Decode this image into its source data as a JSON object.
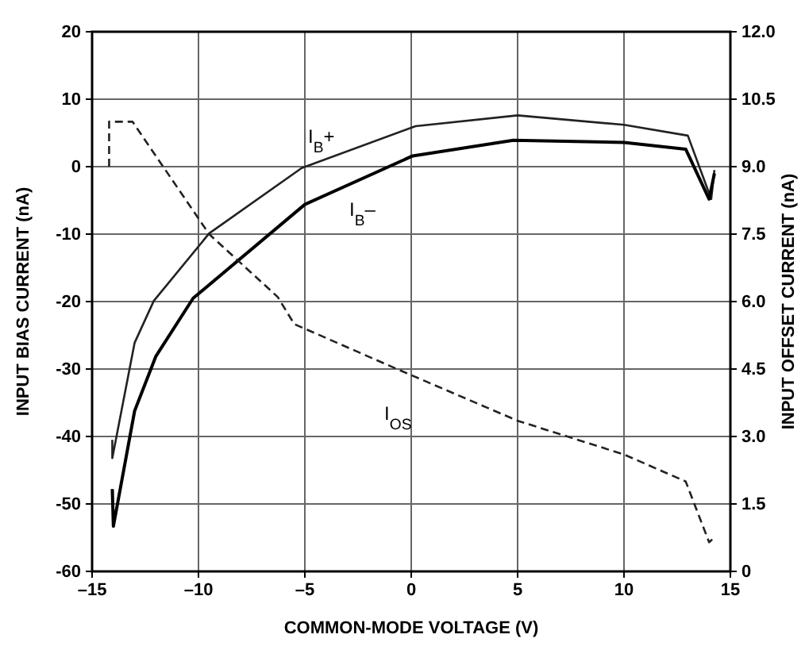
{
  "chart_data": {
    "type": "line",
    "xlabel": "COMMON-MODE VOLTAGE (V)",
    "ylabel": "INPUT BIAS CURRENT (nA)",
    "y2label": "INPUT OFFSET CURRENT (nA)",
    "xlim": [
      -15,
      15
    ],
    "xticks": [
      {
        "value": -15,
        "label": "–15"
      },
      {
        "value": -10,
        "label": "–10"
      },
      {
        "value": -5,
        "label": "–5"
      },
      0,
      5,
      10,
      15
    ],
    "ylim": [
      -60,
      20
    ],
    "yticks": [
      -60,
      -50,
      -40,
      -30,
      -20,
      -10,
      0,
      10,
      20
    ],
    "y2lim": [
      0,
      12
    ],
    "y2ticks": [
      0,
      1.5,
      {
        "value": 3,
        "label": "3.0"
      },
      4.5,
      {
        "value": 6,
        "label": "6.0"
      },
      7.5,
      {
        "value": 9,
        "label": "9.0"
      },
      10.5,
      {
        "value": 12,
        "label": "12.0"
      }
    ],
    "grid": true,
    "marker": "none",
    "series": [
      {
        "name": "I$_{B}$+",
        "color": "#222222",
        "line_style": "solid",
        "x": [
          -14.05,
          -14.05,
          -13.0,
          -12.1,
          -9.5,
          -5.15,
          0.2,
          5,
          10,
          13,
          14.1,
          14.25
        ],
        "values": [
          -40.5,
          -43.2,
          -26.1,
          -19.9,
          -9.9,
          -0.2,
          6.0,
          7.6,
          6.2,
          4.6,
          -4.8,
          -0.5
        ]
      },
      {
        "name": "I$_{B}$–",
        "color": "#000000",
        "line_style": "solid",
        "x": [
          -14.05,
          -14.0,
          -13.0,
          -12.0,
          -10.25,
          -5.0,
          0.07,
          4.8,
          10,
          12.9,
          14.0,
          14.25
        ],
        "values": [
          -47.8,
          -53.3,
          -36.2,
          -28.1,
          -19.5,
          -5.6,
          1.6,
          3.9,
          3.6,
          2.6,
          -4.8,
          -1.0
        ]
      },
      {
        "name": "I$_{OS}$",
        "color": "#222222",
        "line_style": "dashed",
        "axis": "y2",
        "x": [
          -14.2,
          -14.2,
          -13.1,
          -9.5,
          -6.27,
          -5.5,
          -0.67,
          5,
          8,
          10,
          12.9,
          14,
          14.25
        ],
        "values": [
          9.0,
          10.0,
          10.0,
          7.5,
          6.1,
          5.5,
          4.5,
          3.35,
          2.9,
          2.6,
          2.0,
          0.65,
          0.75
        ]
      }
    ]
  }
}
